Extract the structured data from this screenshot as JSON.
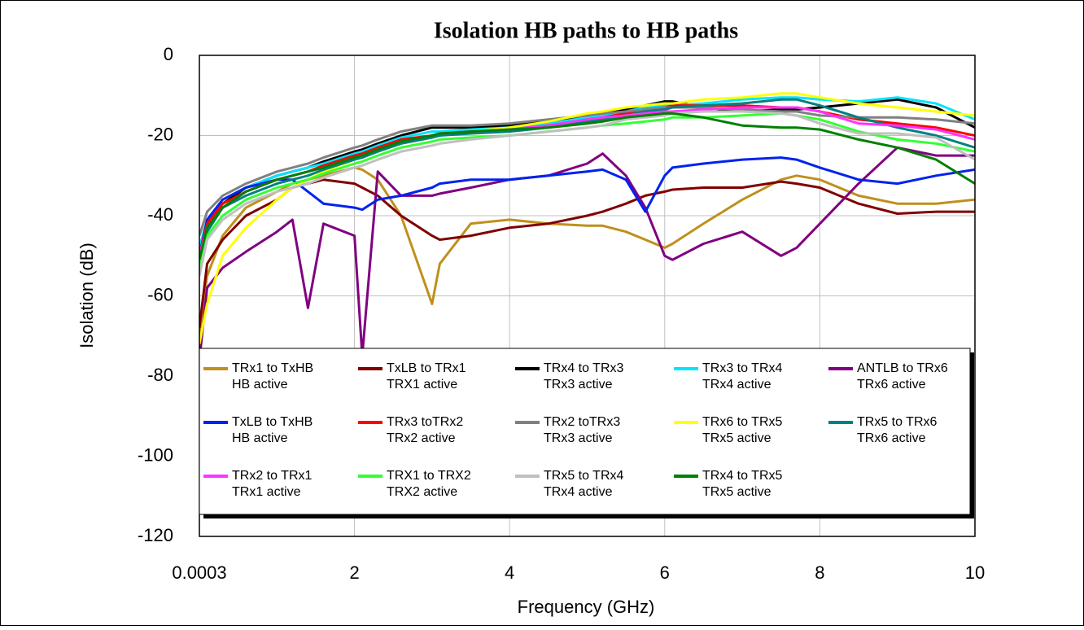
{
  "chart_data": {
    "type": "line",
    "title": "Isolation HB paths to  HB paths",
    "x_label": "Frequency (GHz)",
    "y_label": "Isolation (dB)",
    "xlim": [
      0.0003,
      10
    ],
    "ylim": [
      -120,
      0
    ],
    "xticks": [
      0.0003,
      2,
      4,
      6,
      8,
      10
    ],
    "yticks": [
      0,
      -20,
      -40,
      -60,
      -80,
      -100,
      -120
    ],
    "grid": true,
    "legend": "lower",
    "x": [
      0.0003,
      0.1,
      0.3,
      0.6,
      1,
      1.2,
      1.4,
      1.6,
      2,
      2.1,
      2.3,
      2.6,
      3,
      3.1,
      3.5,
      4,
      4.5,
      5,
      5.2,
      5.5,
      5.75,
      6,
      6.1,
      6.5,
      7,
      7.5,
      7.7,
      8,
      8.5,
      9,
      9.5,
      10
    ],
    "series": [
      {
        "name": "TRx1 to TxHB\nHB active",
        "color": "#c0901c",
        "values": [
          -70,
          -55,
          -45,
          -38,
          -34,
          -32,
          -31,
          -30,
          -28,
          -28.5,
          -31,
          -40,
          -62,
          -52,
          -42,
          -41,
          -42,
          -42.5,
          -42.5,
          -44,
          -46,
          -48,
          -47,
          -42,
          -36,
          -31,
          -30,
          -31,
          -35,
          -37,
          -37,
          -36
        ]
      },
      {
        "name": "TxLB to  TRx1\nTRX1 active",
        "color": "#800000",
        "values": [
          -68,
          -52,
          -46,
          -40,
          -36,
          -33,
          -32,
          -31,
          -32,
          -33,
          -35,
          -40,
          -45,
          -46,
          -45,
          -43,
          -42,
          -40,
          -39,
          -37,
          -35,
          -34,
          -33.5,
          -33,
          -33,
          -31.5,
          -32,
          -33,
          -37,
          -39.5,
          -39,
          -39
        ]
      },
      {
        "name": "TRx4 to TRx3\nTRx3 active",
        "color": "#000000",
        "values": [
          -48,
          -42,
          -37,
          -33,
          -30,
          -29,
          -28,
          -26.5,
          -24,
          -23.5,
          -22,
          -20,
          -18,
          -18,
          -18,
          -17.5,
          -16.5,
          -15,
          -14.5,
          -13.5,
          -12.5,
          -11.5,
          -11.5,
          -13,
          -14,
          -13.5,
          -13.5,
          -13,
          -12,
          -11,
          -13,
          -18
        ]
      },
      {
        "name": "TRx3 to TRx4\nTRx4 active",
        "color": "#00e5ff",
        "values": [
          -48,
          -41,
          -36,
          -33,
          -30,
          -29,
          -28,
          -27,
          -24.5,
          -24,
          -22.5,
          -20.5,
          -19,
          -19,
          -18.5,
          -18,
          -17,
          -15.5,
          -15,
          -14,
          -13,
          -12.5,
          -12.5,
          -12,
          -11,
          -10.5,
          -10.5,
          -11,
          -11.5,
          -10.5,
          -12,
          -16
        ]
      },
      {
        "name": "ANTLB to TRx6\nTRx6 active",
        "color": "#800080",
        "values": [
          -76,
          -58,
          -53,
          -49,
          -44,
          -41,
          -63,
          -42,
          -45,
          -75,
          -29,
          -35,
          -35,
          -34.5,
          -33,
          -31,
          -30,
          -27,
          -24.5,
          -30,
          -38,
          -50,
          -51,
          -47,
          -44,
          -50,
          -48,
          -42,
          -32,
          -23,
          -25,
          -25
        ]
      },
      {
        "name": "TxLB to TxHB\nHB active",
        "color": "#0022ee",
        "values": [
          -50,
          -41,
          -36,
          -33,
          -31,
          -31,
          -34,
          -37,
          -38,
          -38.5,
          -36,
          -35,
          -33,
          -32,
          -31,
          -31,
          -30,
          -29,
          -28.5,
          -31,
          -39,
          -30,
          -28,
          -27,
          -26,
          -25.5,
          -26,
          -28,
          -31,
          -32,
          -30,
          -28.5
        ]
      },
      {
        "name": "TRx3 toTRx2\nTRx2 active",
        "color": "#ff0000",
        "values": [
          -50,
          -42,
          -37,
          -34,
          -31,
          -30,
          -29,
          -27.5,
          -25,
          -24.5,
          -23,
          -21,
          -20,
          -19.5,
          -19,
          -18.5,
          -17.5,
          -16,
          -15.5,
          -14.5,
          -13.5,
          -13,
          -12.5,
          -12.5,
          -12.5,
          -13,
          -13,
          -14,
          -16,
          -17,
          -18,
          -20
        ]
      },
      {
        "name": "TRx2 toTRx3\nTRx3 active",
        "color": "#808080",
        "values": [
          -45,
          -39,
          -35,
          -32,
          -29,
          -28,
          -27,
          -25.5,
          -23,
          -22.5,
          -21,
          -19,
          -17.5,
          -17.5,
          -17.5,
          -17,
          -16,
          -15,
          -14.5,
          -14,
          -13.5,
          -13,
          -13,
          -13,
          -13.5,
          -14,
          -14,
          -15,
          -15.5,
          -15.5,
          -16,
          -17
        ]
      },
      {
        "name": "TRx6 to TRx5\nTRx5 active",
        "color": "#ffff00",
        "values": [
          -72,
          -62,
          -50,
          -43,
          -36,
          -33,
          -31,
          -29,
          -26,
          -25.5,
          -24,
          -22,
          -20,
          -19.5,
          -19,
          -18,
          -16.5,
          -14.5,
          -14,
          -13,
          -12.5,
          -12,
          -12,
          -11,
          -10.5,
          -9.5,
          -9.5,
          -10.5,
          -12,
          -13,
          -14,
          -15
        ]
      },
      {
        "name": "TRx5 to TRx6\nTRx6 active",
        "color": "#008080",
        "values": [
          -52,
          -44,
          -38,
          -35,
          -32,
          -31,
          -30,
          -28.5,
          -26,
          -25.5,
          -24,
          -22,
          -20.5,
          -20,
          -19.5,
          -19,
          -18,
          -16.5,
          -16,
          -15,
          -14,
          -13.5,
          -13,
          -12.5,
          -12,
          -11,
          -11,
          -12.5,
          -15.5,
          -18,
          -20,
          -23
        ]
      },
      {
        "name": "TRx2 to TRx1\nTRx1 active",
        "color": "#ff33ff",
        "values": [
          -50,
          -43,
          -38,
          -34,
          -31,
          -30,
          -29,
          -28,
          -25.5,
          -25,
          -23.5,
          -21.5,
          -20,
          -19.5,
          -19,
          -18.5,
          -17.5,
          -16,
          -15.5,
          -15,
          -14.5,
          -14,
          -14,
          -13.5,
          -13,
          -13,
          -13,
          -14,
          -17,
          -17.5,
          -18.5,
          -21
        ]
      },
      {
        "name": "TRX1 to TRX2\nTRX2 active",
        "color": "#33ff33",
        "values": [
          -53,
          -45,
          -40,
          -36,
          -33,
          -32,
          -31,
          -29.5,
          -27,
          -26.5,
          -25,
          -23,
          -21.5,
          -21,
          -20.5,
          -20,
          -19,
          -18,
          -17.5,
          -17,
          -16.5,
          -16,
          -15.5,
          -15.5,
          -15,
          -14.5,
          -15,
          -16,
          -19,
          -21,
          -22,
          -24
        ]
      },
      {
        "name": "TRx5 to TRx4\nTRx4 active",
        "color": "#c0c0c0",
        "values": [
          -55,
          -46,
          -41,
          -37,
          -34,
          -33,
          -32,
          -30.5,
          -28,
          -27.5,
          -26,
          -24,
          -22.5,
          -22,
          -21,
          -20,
          -19,
          -18,
          -17.5,
          -16,
          -15.5,
          -15,
          -14.5,
          -14,
          -14,
          -14.5,
          -15,
          -17,
          -19.5,
          -19.5,
          -20.5,
          -26
        ]
      },
      {
        "name": "TRx4 to TRx5\nTRx5 active",
        "color": "#008000",
        "values": [
          -51,
          -43,
          -38,
          -34,
          -31,
          -30,
          -29,
          -28,
          -25.5,
          -25,
          -23.5,
          -21.5,
          -20,
          -19.5,
          -19,
          -18.5,
          -18,
          -17,
          -16.5,
          -15.5,
          -15,
          -14.5,
          -14.5,
          -15.5,
          -17.5,
          -18,
          -18,
          -18.5,
          -21,
          -23,
          -26,
          -32
        ]
      }
    ]
  }
}
